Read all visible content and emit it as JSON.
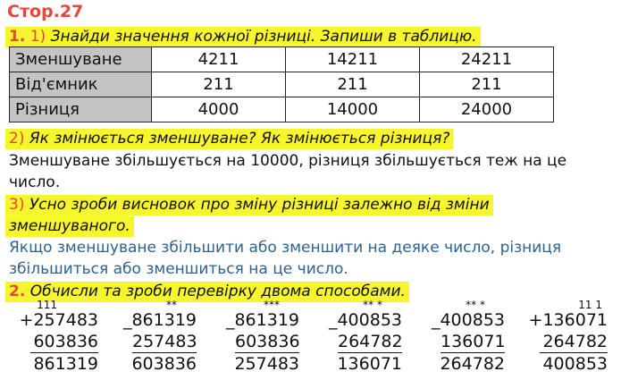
{
  "page_title": "Стор.27",
  "task1": {
    "number": "1.",
    "q1_num": "1)",
    "q1_text": "Знайди значення кожної різниці. Запиши в таблицю.",
    "table": [
      {
        "label": "Зменшуване",
        "values": [
          "4211",
          "14211",
          "24211"
        ]
      },
      {
        "label": "Від'ємник",
        "values": [
          "211",
          "211",
          "211"
        ]
      },
      {
        "label": "Різниця",
        "values": [
          "4000",
          "14000",
          "24000"
        ]
      }
    ],
    "q2_num": "2)",
    "q2_text": "Як змінюється зменшуване? Як змінюється різниця?",
    "a2_line1": "Зменшуване збільшується на 10000, різниця збільшується теж на це",
    "a2_line2": "число.",
    "q3_num": "3)",
    "q3_line1": "Усно зроби висновок про зміну різниці залежно від зміни",
    "q3_line2": "зменшуваного.",
    "a3_line1": "Якщо зменшуване збільшити або зменшити на деяке число, різниця",
    "a3_line2": "збільшиться або зменшиться на це число."
  },
  "task2": {
    "number": "2.",
    "text": "Обчисли та зроби перевірку двома способами.",
    "calcs": [
      {
        "carry": "111",
        "top": "+257483",
        "mid": "603836",
        "res": "861319"
      },
      {
        "carry": "**",
        "top": "_861319",
        "mid": "257483",
        "res": "603836"
      },
      {
        "carry": "***",
        "top": "_861319",
        "mid": "603836",
        "res": "257483"
      },
      {
        "carry": "** *",
        "top": "_400853",
        "mid": "264782",
        "res": "136071"
      },
      {
        "carry": "** *",
        "top": "_400853",
        "mid": "136071",
        "res": "264782"
      },
      {
        "carry": "11 1",
        "top": "+136071",
        "mid": "264782",
        "res": "400853"
      }
    ]
  }
}
